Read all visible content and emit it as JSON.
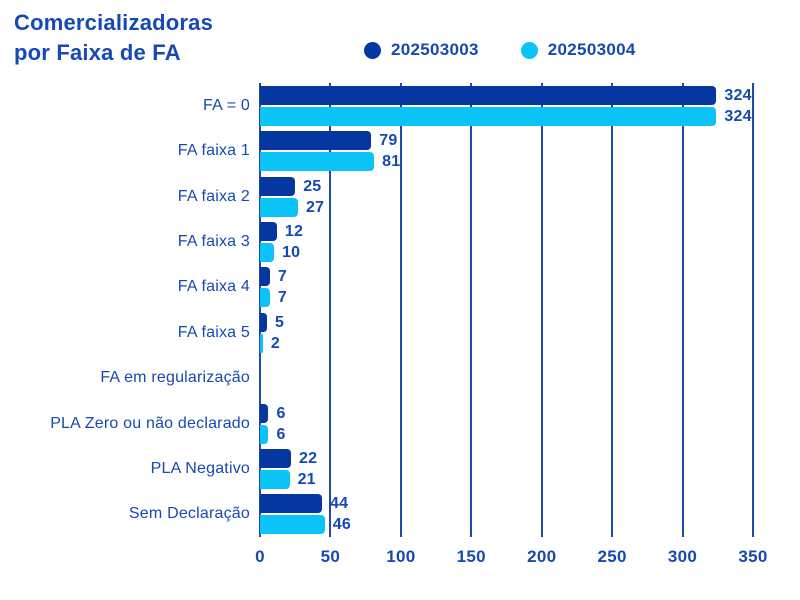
{
  "title": {
    "line1": "Comercializadoras",
    "line2": "por Faixa de FA"
  },
  "colors": {
    "background": "#FFFFFF",
    "text": "#1649B2",
    "grid": "#1C4BAC",
    "series1": "#0636A0",
    "series2": "#0BC3F7"
  },
  "legend": {
    "items": [
      "202503003",
      "202503004"
    ]
  },
  "chart_data": {
    "type": "bar",
    "orientation": "horizontal",
    "title": "Comercializadoras por Faixa de FA",
    "categories": [
      "FA = 0",
      "FA faixa 1",
      "FA faixa 2",
      "FA faixa 3",
      "FA faixa 4",
      "FA faixa 5",
      "FA em regularização",
      "PLA Zero ou não declarado",
      "PLA Negativo",
      "Sem Declaração"
    ],
    "series": [
      {
        "name": "202503003",
        "color": "#0636A0",
        "values": [
          324,
          79,
          25,
          12,
          7,
          5,
          0,
          6,
          22,
          44
        ]
      },
      {
        "name": "202503004",
        "color": "#0BC3F7",
        "values": [
          324,
          81,
          27,
          10,
          7,
          2,
          0,
          6,
          21,
          46
        ]
      }
    ],
    "xticks": [
      0,
      50,
      100,
      150,
      200,
      250,
      300,
      350
    ],
    "xlim": [
      0,
      350
    ],
    "grid": "vertical",
    "legend_position": "top",
    "value_labels": true,
    "hide_zero_bars": true
  }
}
